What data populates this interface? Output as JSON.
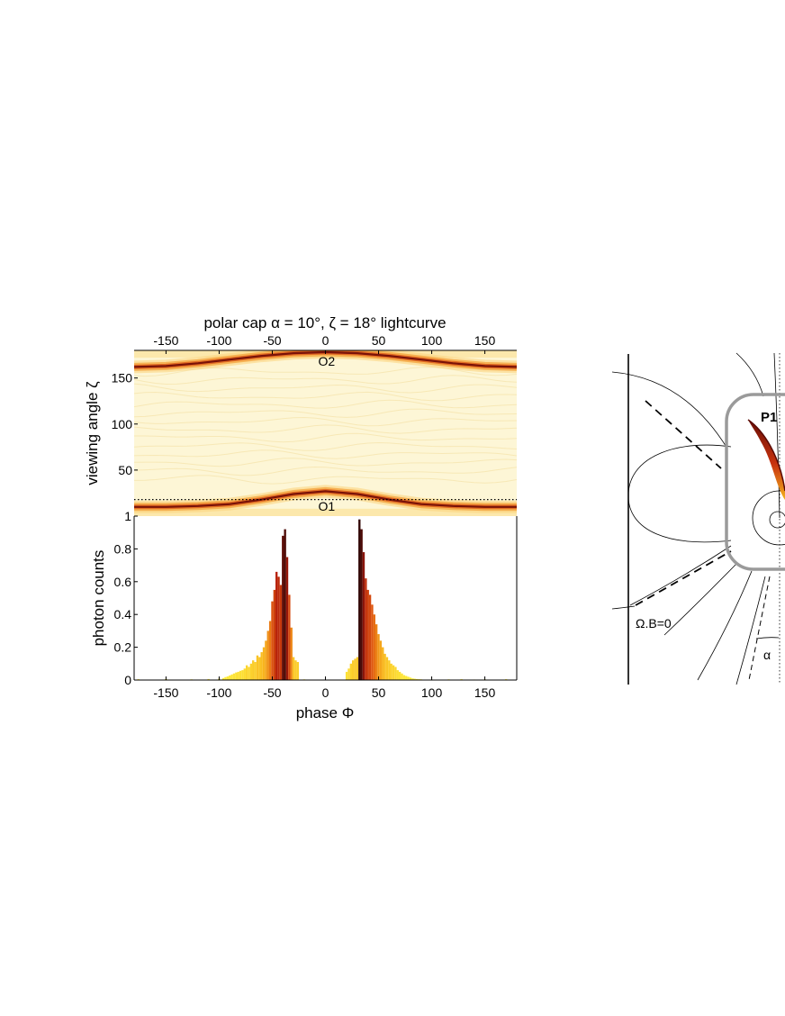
{
  "chart_data": [
    {
      "type": "heatmap",
      "title": "polar cap α = 10°, ζ = 18° lightcurve",
      "ylabel": "viewing angle ζ",
      "xlim": [
        -180,
        180
      ],
      "ylim": [
        0,
        180
      ],
      "xticks": [
        "-150",
        "-100",
        "-50",
        "0",
        "50",
        "100",
        "150"
      ],
      "xtick_values": [
        -150,
        -100,
        -50,
        0,
        50,
        100,
        150
      ],
      "yticks": [
        "50",
        "100",
        "150"
      ],
      "ytick_values": [
        50,
        100,
        150
      ],
      "reference_line": {
        "zeta": 18,
        "style": "dotted"
      },
      "bands": [
        {
          "name": "O1",
          "label": "O1",
          "phase": [
            -180,
            -150,
            -120,
            -90,
            -60,
            -30,
            0,
            30,
            60,
            90,
            120,
            150,
            180
          ],
          "zeta": [
            10,
            10,
            11,
            13,
            18,
            24,
            27,
            24,
            18,
            13,
            11,
            10,
            10
          ]
        },
        {
          "name": "O2",
          "label": "O2",
          "phase": [
            -180,
            -150,
            -120,
            -90,
            -60,
            -30,
            0,
            30,
            60,
            90,
            120,
            150,
            180
          ],
          "zeta": [
            162,
            163,
            166,
            170,
            174,
            177,
            178,
            177,
            174,
            170,
            166,
            163,
            162
          ]
        }
      ],
      "colors": {
        "background": "#fdf6d6",
        "band_mid": "#e0641e",
        "band_core": "#7a1208"
      }
    },
    {
      "type": "bar",
      "xlabel": "phase Φ",
      "ylabel": "photon counts",
      "xlim": [
        -180,
        180
      ],
      "ylim": [
        0,
        1
      ],
      "xticks": [
        "-150",
        "-100",
        "-50",
        "0",
        "50",
        "100",
        "150"
      ],
      "xtick_values": [
        -150,
        -100,
        -50,
        0,
        50,
        100,
        150
      ],
      "yticks": [
        "0",
        "0.2",
        "0.4",
        "0.6",
        "0.8",
        "1"
      ],
      "ytick_values": [
        0,
        0.2,
        0.4,
        0.6,
        0.8,
        1
      ],
      "bin_width": 2,
      "bins": [
        [
          -176,
          0.005
        ],
        [
          -150,
          0.006
        ],
        [
          -126,
          0.004
        ],
        [
          -110,
          0.006
        ],
        [
          -100,
          0.008
        ],
        [
          -96,
          0.012
        ],
        [
          -94,
          0.018
        ],
        [
          -92,
          0.022
        ],
        [
          -90,
          0.028
        ],
        [
          -88,
          0.034
        ],
        [
          -86,
          0.04
        ],
        [
          -84,
          0.046
        ],
        [
          -82,
          0.05
        ],
        [
          -80,
          0.056
        ],
        [
          -78,
          0.06
        ],
        [
          -76,
          0.07
        ],
        [
          -74,
          0.09
        ],
        [
          -72,
          0.08
        ],
        [
          -70,
          0.1
        ],
        [
          -68,
          0.12
        ],
        [
          -66,
          0.11
        ],
        [
          -64,
          0.15
        ],
        [
          -62,
          0.14
        ],
        [
          -60,
          0.17
        ],
        [
          -58,
          0.2
        ],
        [
          -56,
          0.24
        ],
        [
          -54,
          0.3
        ],
        [
          -52,
          0.36
        ],
        [
          -50,
          0.48
        ],
        [
          -48,
          0.55
        ],
        [
          -46,
          0.66
        ],
        [
          -44,
          0.63
        ],
        [
          -42,
          0.58
        ],
        [
          -40,
          0.88
        ],
        [
          -38,
          0.92
        ],
        [
          -36,
          0.75
        ],
        [
          -34,
          0.52
        ],
        [
          -32,
          0.32
        ],
        [
          -30,
          0.14
        ],
        [
          -28,
          0.12
        ],
        [
          -26,
          0.11
        ],
        [
          -20,
          0.004
        ],
        [
          20,
          0.05
        ],
        [
          22,
          0.07
        ],
        [
          24,
          0.1
        ],
        [
          26,
          0.12
        ],
        [
          28,
          0.13
        ],
        [
          30,
          0.14
        ],
        [
          32,
          0.98
        ],
        [
          34,
          0.92
        ],
        [
          36,
          0.78
        ],
        [
          38,
          0.62
        ],
        [
          40,
          0.55
        ],
        [
          42,
          0.52
        ],
        [
          44,
          0.46
        ],
        [
          46,
          0.4
        ],
        [
          48,
          0.34
        ],
        [
          50,
          0.28
        ],
        [
          52,
          0.24
        ],
        [
          54,
          0.2
        ],
        [
          56,
          0.16
        ],
        [
          58,
          0.14
        ],
        [
          60,
          0.12
        ],
        [
          62,
          0.1
        ],
        [
          64,
          0.09
        ],
        [
          66,
          0.08
        ],
        [
          68,
          0.06
        ],
        [
          70,
          0.05
        ],
        [
          72,
          0.04
        ],
        [
          74,
          0.03
        ],
        [
          76,
          0.025
        ],
        [
          78,
          0.02
        ],
        [
          80,
          0.015
        ],
        [
          82,
          0.01
        ],
        [
          84,
          0.008
        ],
        [
          86,
          0.006
        ],
        [
          88,
          0.005
        ],
        [
          90,
          0.004
        ],
        [
          100,
          0.003
        ],
        [
          116,
          0.004
        ],
        [
          128,
          0.005
        ],
        [
          140,
          0.003
        ],
        [
          150,
          0.004
        ],
        [
          170,
          0.005
        ]
      ]
    }
  ],
  "diagram": {
    "labels": {
      "p1": "P1",
      "light_cylinder_condition": "Ω.B=0",
      "angle": "α"
    },
    "colors": {
      "frame": "#9a9a9a",
      "line": "#000000",
      "cusp_core": "#7a1208",
      "cusp_tip": "#f0b020"
    }
  }
}
